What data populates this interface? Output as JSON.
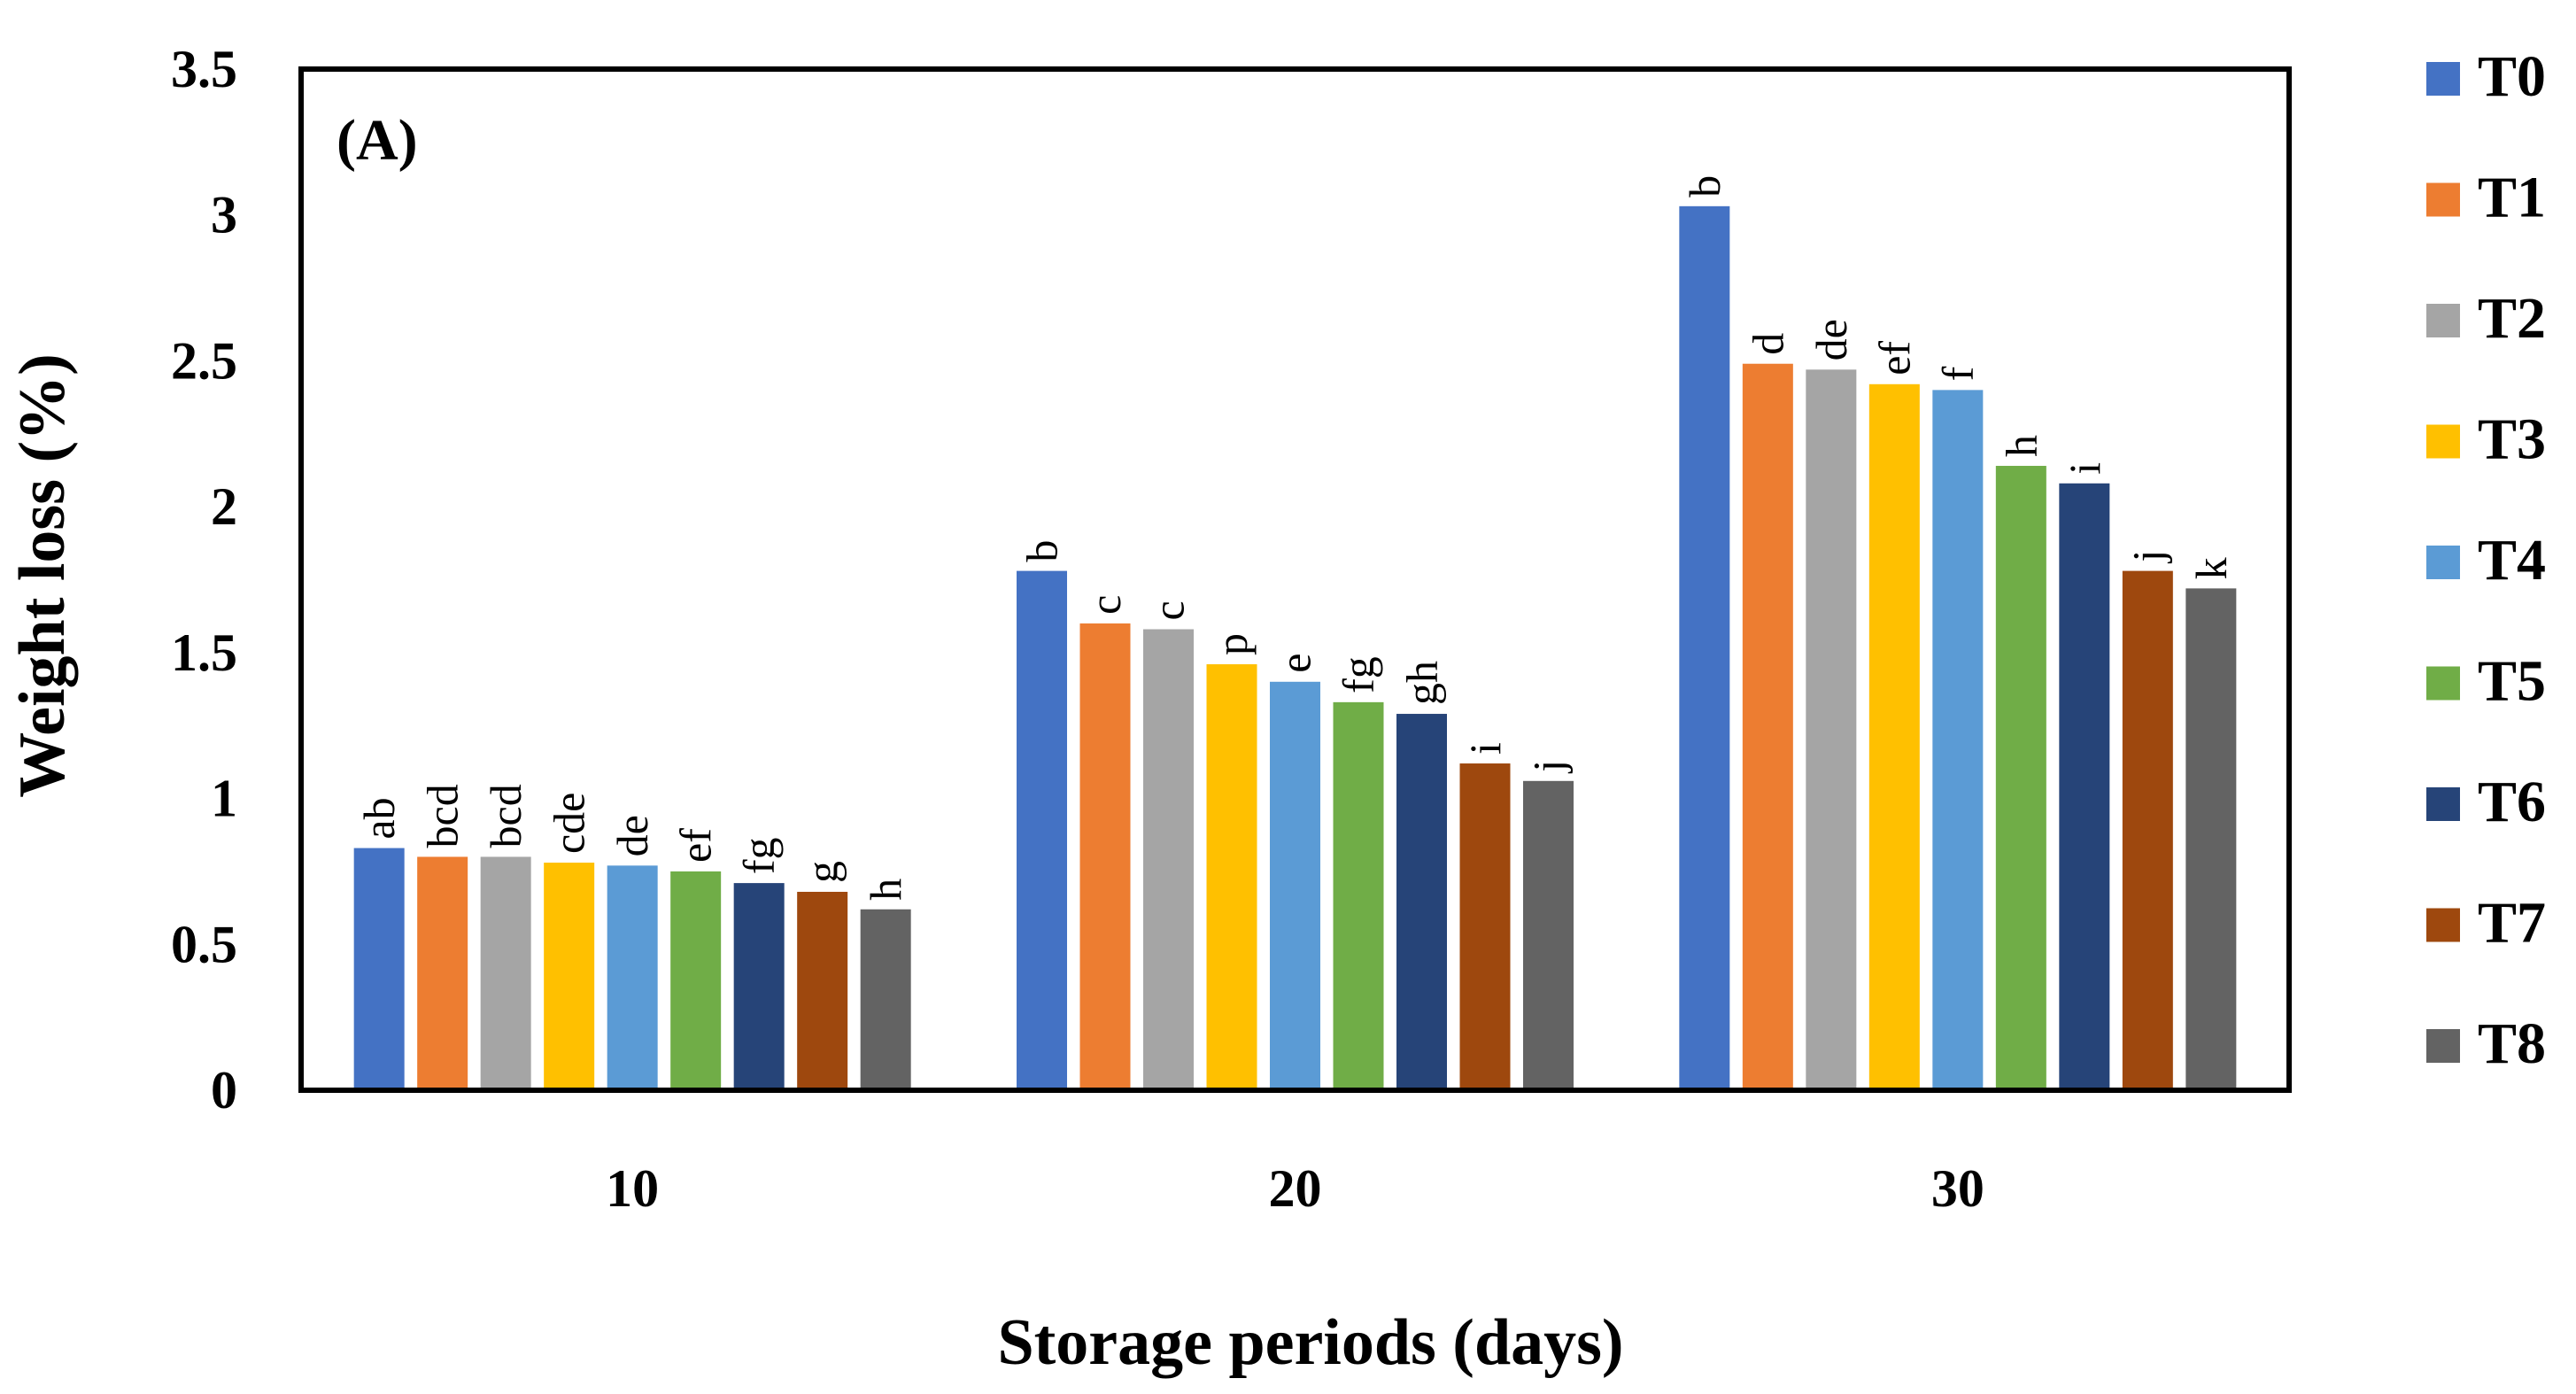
{
  "chart_data": {
    "type": "bar",
    "panel_label": "(A)",
    "xlabel": "Storage periods (days)",
    "ylabel": "Weight loss (%)",
    "ylim": [
      0,
      3.5
    ],
    "yticks": [
      "0",
      "0.5",
      "1",
      "1.5",
      "2",
      "2.5",
      "3",
      "3.5"
    ],
    "categories": [
      "10",
      "20",
      "30"
    ],
    "grid": false,
    "legend_position": "right",
    "series": [
      {
        "name": "T0",
        "color": "#4472C4",
        "values": [
          0.83,
          1.78,
          3.03
        ],
        "letters": [
          "ab",
          "b",
          "b"
        ]
      },
      {
        "name": "T1",
        "color": "#ED7D31",
        "values": [
          0.8,
          1.6,
          2.49
        ],
        "letters": [
          "bcd",
          "c",
          "d"
        ]
      },
      {
        "name": "T2",
        "color": "#A5A5A5",
        "values": [
          0.8,
          1.58,
          2.47
        ],
        "letters": [
          "bcd",
          "c",
          "de"
        ]
      },
      {
        "name": "T3",
        "color": "#FFC000",
        "values": [
          0.78,
          1.46,
          2.42
        ],
        "letters": [
          "cde",
          "p",
          "ef"
        ]
      },
      {
        "name": "T4",
        "color": "#5B9BD5",
        "values": [
          0.77,
          1.4,
          2.4
        ],
        "letters": [
          "de",
          "e",
          "f"
        ]
      },
      {
        "name": "T5",
        "color": "#70AD47",
        "values": [
          0.75,
          1.33,
          2.14
        ],
        "letters": [
          "ef",
          "fg",
          "h"
        ]
      },
      {
        "name": "T6",
        "color": "#264478",
        "values": [
          0.71,
          1.29,
          2.08
        ],
        "letters": [
          "fg",
          "gh",
          "i"
        ]
      },
      {
        "name": "T7",
        "color": "#9E480E",
        "values": [
          0.68,
          1.12,
          1.78
        ],
        "letters": [
          "g",
          "i",
          "j"
        ]
      },
      {
        "name": "T8",
        "color": "#636363",
        "values": [
          0.62,
          1.06,
          1.72
        ],
        "letters": [
          "h",
          "j",
          "k"
        ]
      }
    ]
  }
}
